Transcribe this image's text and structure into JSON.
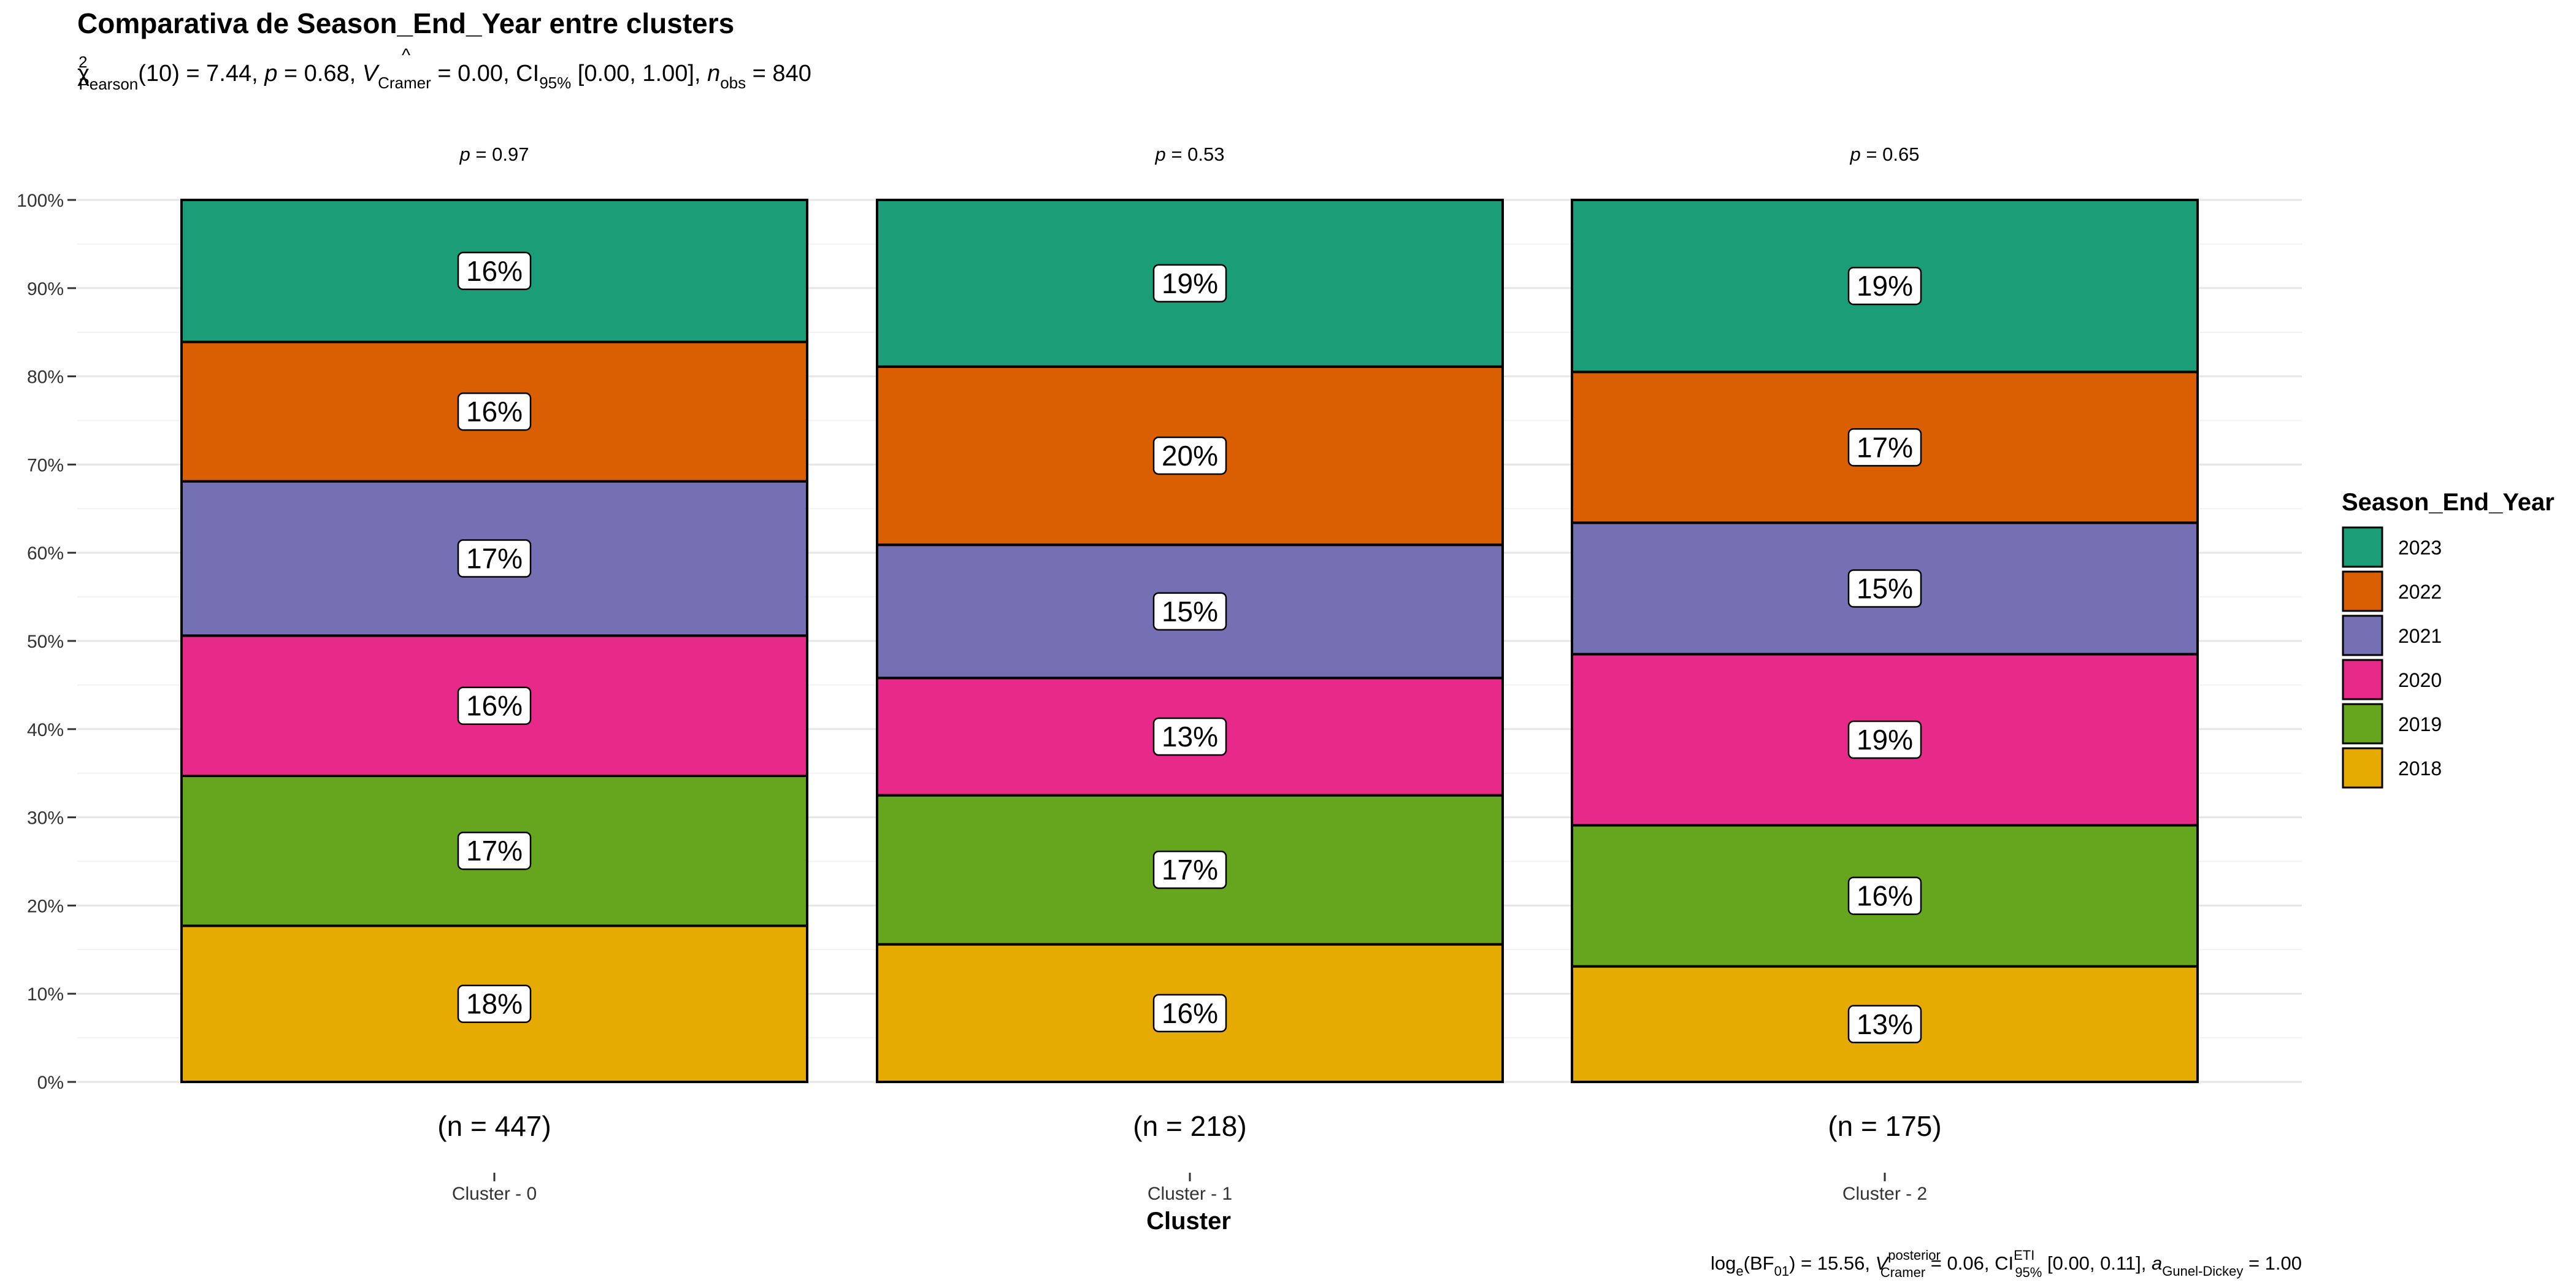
{
  "chart_data": {
    "type": "bar",
    "stacked": "percent",
    "title": "Comparativa de Season_End_Year entre clusters",
    "subtitle": {
      "chi2_label": "χ",
      "chi2_sup": "2",
      "chi2_sub": "Pearson",
      "chi2_value": "(10) = 7.44, ",
      "p_label": "p",
      "p_value": " = 0.68, ",
      "v_label": "V",
      "v_hat": "^",
      "v_sub": "Cramer",
      "v_value": " = 0.00, CI",
      "ci_sub": "95%",
      "ci_value": " [0.00, 1.00], ",
      "n_label": "n",
      "n_sub": "obs",
      "n_value": " = 840"
    },
    "caption": {
      "log_text": "log",
      "log_sub": "e",
      "bf_text": "(BF",
      "bf_sub": "01",
      "bf_value": ") = 15.56, ",
      "v_label": "V",
      "v_hat": "^",
      "v_sup": "posterior",
      "v_sub": "Cramer",
      "v_value": " = 0.06, CI",
      "ci_sup": "ETI",
      "ci_sub": "95%",
      "ci_value": " [0.00, 0.11], ",
      "a_label": "a",
      "a_sub": "Gunel-Dickey",
      "a_value": " = 1.00"
    },
    "xlabel": "Cluster",
    "ylabel": "",
    "ylim": [
      0,
      100
    ],
    "y_ticks": [
      "0%",
      "10%",
      "20%",
      "30%",
      "40%",
      "50%",
      "60%",
      "70%",
      "80%",
      "90%",
      "100%"
    ],
    "grid": true,
    "legend": {
      "title": "Season_End_Year",
      "placement": "right"
    },
    "categories": [
      "Cluster - 0",
      "Cluster - 1",
      "Cluster - 2"
    ],
    "counts": [
      "(n = 447)",
      "(n = 218)",
      "(n = 175)"
    ],
    "p_values": [
      {
        "label": "p",
        "value": " = 0.97"
      },
      {
        "label": "p",
        "value": " = 0.53"
      },
      {
        "label": "p",
        "value": " = 0.65"
      }
    ],
    "series": [
      {
        "name": "2018",
        "color": "#E6AB02",
        "values": [
          17.7,
          15.6,
          13.1
        ],
        "labels": [
          "18%",
          "16%",
          "13%"
        ]
      },
      {
        "name": "2019",
        "color": "#66A61E",
        "values": [
          17.0,
          16.9,
          16.0
        ],
        "labels": [
          "17%",
          "17%",
          "16%"
        ]
      },
      {
        "name": "2020",
        "color": "#E7298A",
        "values": [
          15.9,
          13.3,
          19.4
        ],
        "labels": [
          "16%",
          "13%",
          "19%"
        ]
      },
      {
        "name": "2021",
        "color": "#7570B3",
        "values": [
          17.5,
          15.1,
          14.9
        ],
        "labels": [
          "17%",
          "15%",
          "15%"
        ]
      },
      {
        "name": "2022",
        "color": "#D95F02",
        "values": [
          15.8,
          20.2,
          17.1
        ],
        "labels": [
          "16%",
          "20%",
          "17%"
        ]
      },
      {
        "name": "2023",
        "color": "#1B9E77",
        "values": [
          16.1,
          18.9,
          19.5
        ],
        "labels": [
          "16%",
          "19%",
          "19%"
        ]
      }
    ]
  }
}
